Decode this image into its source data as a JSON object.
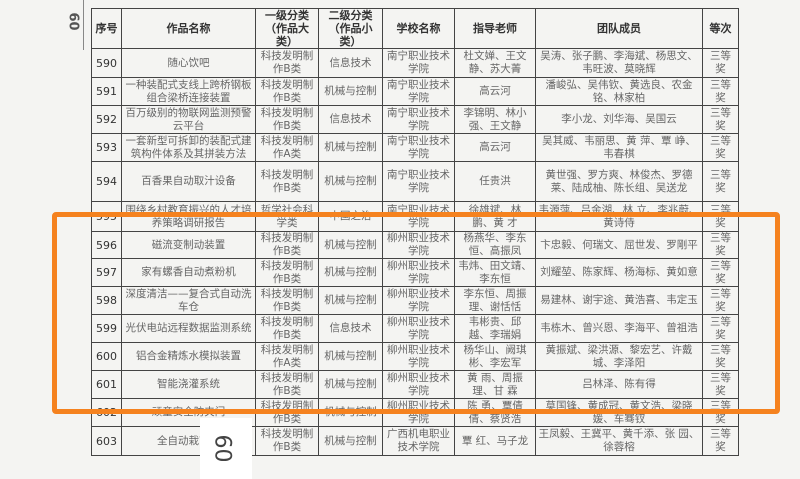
{
  "page_number": "60",
  "headers": [
    "序号",
    "作品名称",
    "一级分类（作品大类）",
    "二级分类（作品小类）",
    "学校名称",
    "指导老师",
    "团队成员",
    "等次"
  ],
  "rows": [
    {
      "no": "590",
      "name": "随心饮吧",
      "cat1": "科技发明制作B类",
      "cat2": "信息技术",
      "school": "南宁职业技术学院",
      "advisor": "杜文婵、王文静、苏大菁",
      "members": "吴涛、张子鹏、李海斌、杨思文、韦旺波、莫晓辉",
      "award": "三等奖"
    },
    {
      "no": "591",
      "name": "一种装配式支线上跨桥钢板组合梁桥连接装置",
      "cat1": "科技发明制作B类",
      "cat2": "机械与控制",
      "school": "南宁职业技术学院",
      "advisor": "高云河",
      "members": "潘峻弘、吴伟钦、黄选良、农金铭、林家柏",
      "award": "三等奖"
    },
    {
      "no": "592",
      "name": "百万级别的物联网监测预警云平台",
      "cat1": "科技发明制作B类",
      "cat2": "信息技术",
      "school": "南宁职业技术学院",
      "advisor": "李锦明、林小强、王文静",
      "members": "李小龙、刘华海、吴国云",
      "award": "三等奖"
    },
    {
      "no": "593",
      "name": "一套新型可拆卸的装配式建筑构件体系及其拼装方法",
      "cat1": "科技发明制作A类",
      "cat2": "机械与控制",
      "school": "南宁职业技术学院",
      "advisor": "高云河",
      "members": "吴其威、韦丽思、黄 萍、覃 峥、韦春棋",
      "award": "三等奖"
    },
    {
      "no": "594",
      "name": "百香果自动取汁设备",
      "cat1": "科技发明制作B类",
      "cat2": "机械与控制",
      "school": "南宁职业技术学院",
      "advisor": "任贵洪",
      "members": "黄世强、罗方爽、林俊杰、罗德莱、陆成柚、陈长组、吴送龙",
      "award": "三等奖"
    },
    {
      "no": "595",
      "name": "围绕乡村教育振兴的人才培养策略调研报告",
      "cat1": "哲学社会科学类",
      "cat2": "中国之治",
      "school": "南宁职业技术学院",
      "advisor": "徐雄斌、林 鹏、黄 才",
      "members": "韦源萍、吕金湖、林 立、李兆蔚、黄诗侍",
      "award": "三等奖"
    },
    {
      "no": "596",
      "name": "磁流变制动装置",
      "cat1": "科技发明制作B类",
      "cat2": "机械与控制",
      "school": "柳州职业技术学院",
      "advisor": "杨燕华、李东恒、高振凤",
      "members": "卞忠毅、何瑞文、屈世发、罗剛平",
      "award": "三等奖"
    },
    {
      "no": "597",
      "name": "家有螺香自动煮粉机",
      "cat1": "科技发明制作B类",
      "cat2": "机械与控制",
      "school": "柳州职业技术学院",
      "advisor": "韦炜、田文靖、李东恒",
      "members": "刘耀堃、陈家辉、杨海标、黄如意",
      "award": "三等奖"
    },
    {
      "no": "598",
      "name": "深度清洁——复合式自动洗车仓",
      "cat1": "科技发明制作B类",
      "cat2": "机械与控制",
      "school": "柳州职业技术学院",
      "advisor": "李东恒、周振理、谢恬恬",
      "members": "易建林、谢宇途、黄浩喜、韦定玉",
      "award": "三等奖"
    },
    {
      "no": "599",
      "name": "光伏电站远程数据监测系统",
      "cat1": "科技发明制作B类",
      "cat2": "信息技术",
      "school": "柳州职业技术学院",
      "advisor": "韦彬贵、邱 越、李瑞娟",
      "members": "韦栋木、曾兴恩、李海平、曾祖浩",
      "award": "三等奖"
    },
    {
      "no": "600",
      "name": "铝合金精炼水模拟装置",
      "cat1": "科技发明制作A类",
      "cat2": "机械与控制",
      "school": "柳州职业技术学院",
      "advisor": "杨华山、阙琪彬、李宏军",
      "members": "黄振斌、梁洪源、黎宏艺、许戴城、李泽阳",
      "award": "三等奖"
    },
    {
      "no": "601",
      "name": "智能浇灌系统",
      "cat1": "科技发明制作B类",
      "cat2": "机械与控制",
      "school": "柳州职业技术学院",
      "advisor": "黄 雨、周振理、甘 霖",
      "members": "吕林泽、陈有得",
      "award": "三等奖"
    },
    {
      "no": "602",
      "name": "顽童安全防夹门",
      "cat1": "科技发明制作B类",
      "cat2": "机械与控制",
      "school": "柳州职业技术学院",
      "advisor": "陈 勇、覃倩倩、蔡贤浩",
      "members": "莫国锋、黄成冠、黄文浩、梁晓媛、车骞钗",
      "award": "三等奖"
    },
    {
      "no": "603",
      "name": "全自动栽苗机",
      "cat1": "科技发明制作B类",
      "cat2": "机械与控制",
      "school": "广西机电职业技术学院",
      "advisor": "覃 红、马子龙",
      "members": "王凤毅、王冀平、黄千添、张 园、徐蓉榕",
      "award": "三等奖"
    }
  ],
  "highlight_color": "#f5821f"
}
